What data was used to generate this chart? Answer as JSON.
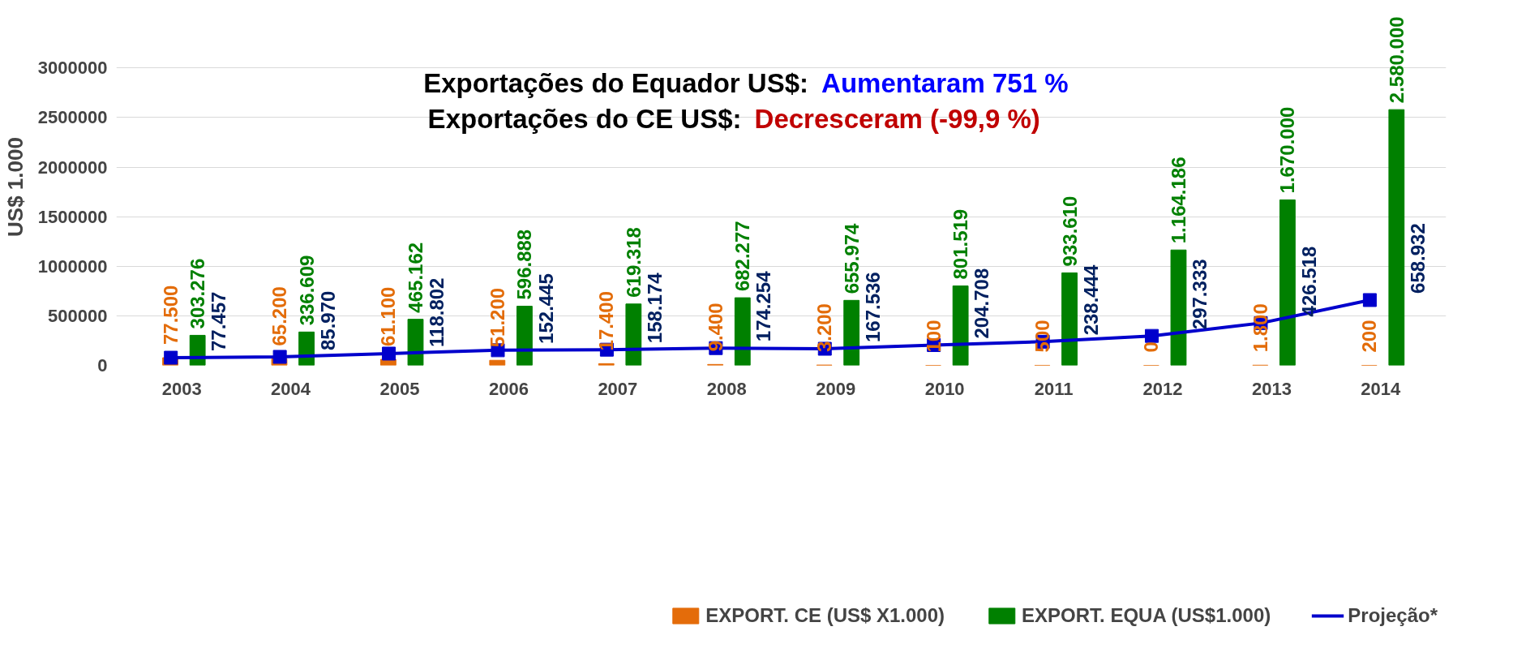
{
  "chart_data": {
    "type": "bar",
    "title": "Exportações do Equador US$:",
    "subtitle": "Exportações do CE US$:",
    "annotations": [
      "Aumentaram 751 %",
      "Decresceram (-99,9 %)"
    ],
    "ylabel": "US$ 1.000",
    "categories": [
      "2003",
      "2004",
      "2005",
      "2006",
      "2007",
      "2008",
      "2009",
      "2010",
      "2011",
      "2012",
      "2013",
      "2014"
    ],
    "series": [
      {
        "name": "EXPORT. CE (US$ X1.000)",
        "color": "#e46c0a",
        "values": [
          77500,
          65200,
          61100,
          51200,
          17400,
          9400,
          3200,
          100,
          500,
          0,
          1800,
          200
        ],
        "value_labels": [
          "77.500",
          "65.200",
          "61.100",
          "51.200",
          "17.400",
          "9.400",
          "3.200",
          "100",
          "500",
          "0",
          "1.800",
          "200"
        ]
      },
      {
        "name": "EXPORT. EQUA (US$1.000)",
        "color": "#008000",
        "values": [
          303276,
          336609,
          465162,
          596888,
          619318,
          682277,
          655974,
          801519,
          933610,
          1164186,
          1670000,
          2580000
        ],
        "value_labels": [
          "303.276",
          "336.609",
          "465.162",
          "596.888",
          "619.318",
          "682.277",
          "655.974",
          "801.519",
          "933.610",
          "1.164.186",
          "1.670.000",
          "2.580.000"
        ]
      },
      {
        "name": "Projeção*",
        "type": "line",
        "color": "#0000cc",
        "marker": "square",
        "values": [
          77457,
          85970,
          118802,
          152445,
          158174,
          174254,
          167536,
          204708,
          238444,
          297333,
          426518,
          658932
        ],
        "value_labels": [
          "77.457",
          "85.970",
          "118.802",
          "152.445",
          "158.174",
          "174.254",
          "167.536",
          "204.708",
          "238.444",
          "297.333",
          "426.518",
          "658.932"
        ]
      }
    ],
    "ylim": [
      0,
      3000000
    ],
    "yticks": [
      0,
      500000,
      1000000,
      1500000,
      2000000,
      2500000,
      3000000
    ],
    "grid": "y",
    "legend": "bottom"
  }
}
